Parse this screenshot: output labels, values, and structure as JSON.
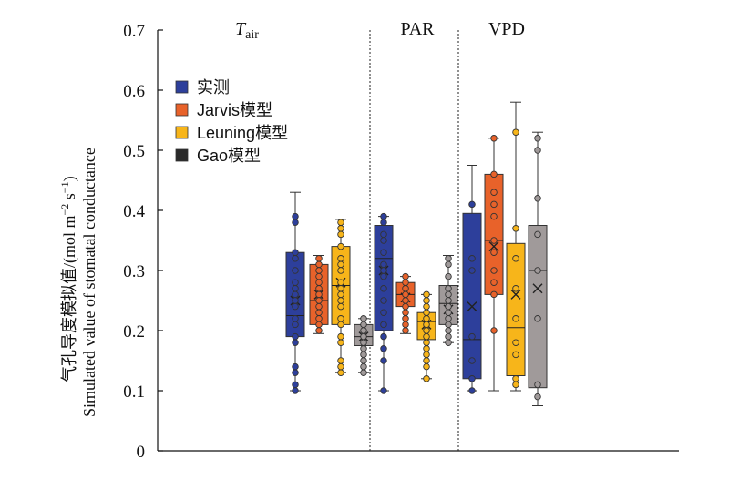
{
  "chart_data": {
    "type": "box",
    "y_label_zh": "气孔导度模拟值/(mol m",
    "y_label_en": "Simulated value of stomatal conductance",
    "y_label_unit_a": "−2",
    "y_label_unit_mid": " s",
    "y_label_unit_b": "−1",
    "y_label_close": ")",
    "ylim": [
      0,
      0.7
    ],
    "y_ticks": [
      "0",
      "0.1",
      "0.2",
      "0.3",
      "0.4",
      "0.5",
      "0.6",
      "0.7"
    ],
    "groups": [
      {
        "label_main": "T",
        "label_sub": "air"
      },
      {
        "label_main": "PAR",
        "label_sub": ""
      },
      {
        "label_main": "VPD",
        "label_sub": ""
      }
    ],
    "series": [
      {
        "name": "实测",
        "color": "#2d3f9b"
      },
      {
        "name": "Jarvis模型",
        "color": "#e8622a"
      },
      {
        "name": "Leuning模型",
        "color": "#f7b51a"
      },
      {
        "name": "Gao模型",
        "color": "#a09a9a"
      }
    ],
    "legend_swatch_colors": [
      "#2d3f9b",
      "#e8622a",
      "#f7b51a",
      "#2a2a2a"
    ],
    "boxes": [
      {
        "group": 0,
        "series": 0,
        "min": 0.1,
        "q1": 0.19,
        "median": 0.225,
        "q3": 0.33,
        "max": 0.43,
        "mean": 0.25,
        "points": [
          0.39,
          0.38,
          0.33,
          0.32,
          0.3,
          0.28,
          0.27,
          0.26,
          0.25,
          0.24,
          0.22,
          0.21,
          0.19,
          0.18,
          0.14,
          0.13,
          0.11,
          0.1
        ]
      },
      {
        "group": 0,
        "series": 1,
        "min": 0.195,
        "q1": 0.21,
        "median": 0.25,
        "q3": 0.31,
        "max": 0.325,
        "mean": 0.26,
        "points": [
          0.32,
          0.31,
          0.3,
          0.29,
          0.28,
          0.27,
          0.26,
          0.25,
          0.24,
          0.23,
          0.22,
          0.21,
          0.2
        ]
      },
      {
        "group": 0,
        "series": 2,
        "min": 0.13,
        "q1": 0.21,
        "median": 0.275,
        "q3": 0.34,
        "max": 0.385,
        "mean": 0.28,
        "points": [
          0.38,
          0.37,
          0.36,
          0.34,
          0.32,
          0.31,
          0.3,
          0.28,
          0.27,
          0.26,
          0.25,
          0.24,
          0.22,
          0.21,
          0.19,
          0.18,
          0.15,
          0.14,
          0.13
        ]
      },
      {
        "group": 0,
        "series": 3,
        "min": 0.13,
        "q1": 0.175,
        "median": 0.19,
        "q3": 0.21,
        "max": 0.22,
        "mean": 0.19,
        "points": [
          0.22,
          0.21,
          0.2,
          0.19,
          0.18,
          0.17,
          0.16,
          0.15,
          0.14,
          0.13
        ]
      },
      {
        "group": 1,
        "series": 0,
        "min": 0.1,
        "q1": 0.2,
        "median": 0.32,
        "q3": 0.375,
        "max": 0.39,
        "mean": 0.3,
        "points": [
          0.39,
          0.38,
          0.36,
          0.35,
          0.33,
          0.31,
          0.3,
          0.29,
          0.27,
          0.25,
          0.23,
          0.21,
          0.19,
          0.17,
          0.15,
          0.1
        ]
      },
      {
        "group": 1,
        "series": 1,
        "min": 0.195,
        "q1": 0.24,
        "median": 0.26,
        "q3": 0.28,
        "max": 0.29,
        "mean": 0.255,
        "points": [
          0.29,
          0.28,
          0.27,
          0.26,
          0.25,
          0.24,
          0.23,
          0.22,
          0.21,
          0.2
        ]
      },
      {
        "group": 1,
        "series": 2,
        "min": 0.12,
        "q1": 0.185,
        "median": 0.215,
        "q3": 0.23,
        "max": 0.26,
        "mean": 0.21,
        "points": [
          0.26,
          0.25,
          0.24,
          0.23,
          0.22,
          0.21,
          0.2,
          0.19,
          0.18,
          0.17,
          0.16,
          0.15,
          0.14,
          0.12
        ]
      },
      {
        "group": 1,
        "series": 3,
        "min": 0.18,
        "q1": 0.21,
        "median": 0.245,
        "q3": 0.275,
        "max": 0.325,
        "mean": 0.235,
        "points": [
          0.32,
          0.31,
          0.29,
          0.27,
          0.26,
          0.25,
          0.24,
          0.23,
          0.22,
          0.21,
          0.2,
          0.19,
          0.18
        ]
      },
      {
        "group": 2,
        "series": 0,
        "min": 0.1,
        "q1": 0.12,
        "median": 0.185,
        "q3": 0.395,
        "max": 0.475,
        "mean": 0.24,
        "points": [
          0.41,
          0.32,
          0.3,
          0.19,
          0.15,
          0.12,
          0.1
        ]
      },
      {
        "group": 2,
        "series": 1,
        "min": 0.1,
        "q1": 0.26,
        "median": 0.35,
        "q3": 0.46,
        "max": 0.52,
        "mean": 0.34,
        "points": [
          0.52,
          0.46,
          0.43,
          0.41,
          0.39,
          0.35,
          0.33,
          0.3,
          0.28,
          0.26,
          0.2
        ]
      },
      {
        "group": 2,
        "series": 2,
        "min": 0.1,
        "q1": 0.125,
        "median": 0.205,
        "q3": 0.345,
        "max": 0.58,
        "mean": 0.26,
        "points": [
          0.53,
          0.37,
          0.32,
          0.27,
          0.22,
          0.18,
          0.16,
          0.12,
          0.11
        ]
      },
      {
        "group": 2,
        "series": 3,
        "min": 0.075,
        "q1": 0.105,
        "median": 0.3,
        "q3": 0.375,
        "max": 0.53,
        "mean": 0.27,
        "points": [
          0.52,
          0.5,
          0.42,
          0.36,
          0.3,
          0.22,
          0.11,
          0.09
        ]
      }
    ]
  }
}
